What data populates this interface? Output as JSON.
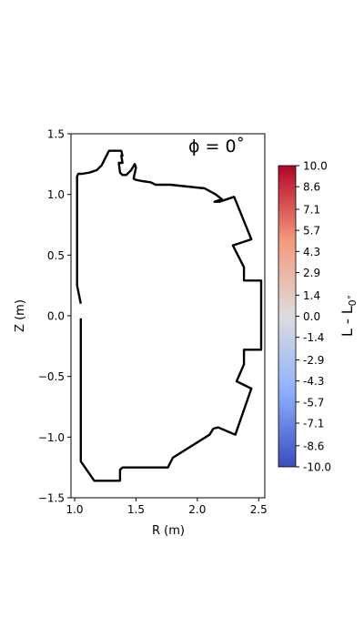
{
  "chart_data": {
    "type": "line",
    "annotation": "ϕ = 0˚",
    "xlabel": "R (m)",
    "ylabel": "Z (m)",
    "xlim": [
      0.97,
      2.55
    ],
    "ylim": [
      -1.5,
      1.5
    ],
    "x_ticks": [
      1.0,
      1.5,
      2.0,
      2.5
    ],
    "x_tick_labels": [
      "1.0",
      "1.5",
      "2.0",
      "2.5"
    ],
    "y_ticks": [
      -1.5,
      -1.0,
      -0.5,
      0.0,
      0.5,
      1.0,
      1.5
    ],
    "y_tick_labels": [
      "−1.5",
      "−1.0",
      "−0.5",
      "0.0",
      "0.5",
      "1.0",
      "1.5"
    ],
    "grid": false,
    "line_color": "#000000",
    "series": [
      {
        "x": [
          1.05,
          1.02,
          1.02,
          1.03,
          1.06,
          1.12,
          1.18,
          1.22,
          1.25,
          1.28,
          1.32,
          1.38,
          1.39,
          1.38,
          1.39,
          1.36,
          1.37,
          1.39,
          1.42,
          1.46,
          1.49,
          1.5,
          1.48,
          1.5,
          1.55,
          1.62,
          1.66,
          1.78,
          2.06,
          2.15,
          2.2,
          2.14,
          2.18,
          2.3,
          2.44,
          2.29,
          2.38,
          2.38,
          2.52,
          2.52,
          2.38,
          2.38,
          2.32,
          2.44,
          2.31,
          2.17,
          2.13,
          2.1,
          1.8,
          1.76,
          1.39,
          1.37,
          1.37,
          1.16,
          1.05,
          1.05
        ],
        "y": [
          0.1,
          0.25,
          1.15,
          1.17,
          1.17,
          1.18,
          1.2,
          1.24,
          1.3,
          1.36,
          1.36,
          1.36,
          1.32,
          1.32,
          1.26,
          1.26,
          1.18,
          1.16,
          1.16,
          1.2,
          1.25,
          1.22,
          1.13,
          1.12,
          1.11,
          1.1,
          1.08,
          1.08,
          1.05,
          1.0,
          0.96,
          0.94,
          0.94,
          0.98,
          0.63,
          0.58,
          0.4,
          0.29,
          0.29,
          -0.28,
          -0.28,
          -0.4,
          -0.54,
          -0.6,
          -0.98,
          -0.92,
          -0.93,
          -0.98,
          -1.17,
          -1.25,
          -1.25,
          -1.27,
          -1.36,
          -1.36,
          -1.2,
          -0.02
        ]
      }
    ],
    "colorbar": {
      "label": "L - L",
      "label_subscript": "0˚",
      "range": [
        -10.0,
        10.0
      ],
      "tick_values": [
        10.0,
        8.6,
        7.1,
        5.7,
        4.3,
        2.9,
        1.4,
        0.0,
        -1.4,
        -2.9,
        -4.3,
        -5.7,
        -7.1,
        -8.6,
        -10.0
      ],
      "tick_labels": [
        "10.0",
        "8.6",
        "7.1",
        "5.7",
        "4.3",
        "2.9",
        "1.4",
        "0.0",
        "-1.4",
        "-2.9",
        "-4.3",
        "-5.7",
        "-7.1",
        "-8.6",
        "-10.0"
      ],
      "colormap": "coolwarm",
      "colors": [
        "#3b4cc0",
        "#8db0fe",
        "#dddddd",
        "#f49a7b",
        "#b40426"
      ]
    }
  }
}
